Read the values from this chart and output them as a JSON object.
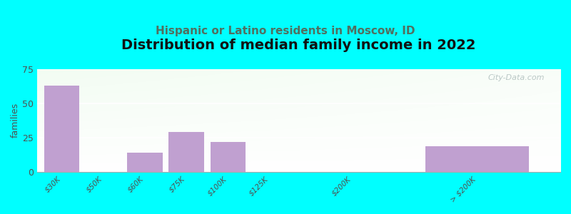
{
  "title": "Distribution of median family income in 2022",
  "subtitle": "Hispanic or Latino residents in Moscow, ID",
  "ylabel": "families",
  "background_color": "#00FFFF",
  "bar_color": "#c0a0d0",
  "bar_edge_color": "#b090c0",
  "categories": [
    "$30K",
    "$50K",
    "$60K",
    "$75K",
    "$100K",
    "$125K",
    "$200K",
    "> $200K"
  ],
  "values": [
    63,
    0,
    14,
    29,
    22,
    0,
    0,
    19
  ],
  "bar_positions": [
    0,
    1,
    2,
    3,
    4,
    5,
    7,
    10
  ],
  "bar_widths": [
    0.85,
    0.85,
    0.85,
    0.85,
    0.85,
    0.85,
    0.85,
    2.5
  ],
  "ylim": [
    0,
    75
  ],
  "xlim": [
    -0.6,
    12
  ],
  "yticks": [
    0,
    25,
    50,
    75
  ],
  "title_fontsize": 14,
  "subtitle_fontsize": 11,
  "subtitle_color": "#507060",
  "ylabel_fontsize": 9,
  "watermark": "City-Data.com"
}
